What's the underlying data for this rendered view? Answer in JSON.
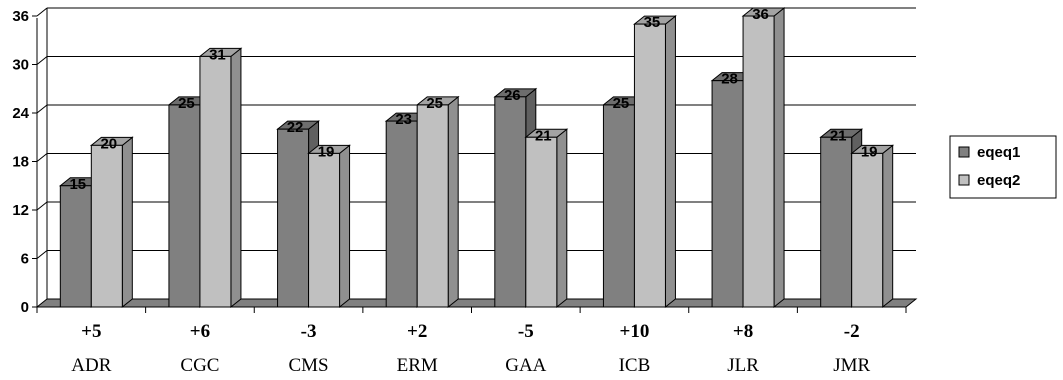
{
  "chart_data": {
    "type": "bar",
    "bar_style": "3d-clustered-column",
    "categories": [
      "ADR",
      "CGC",
      "CMS",
      "ERM",
      "GAA",
      "ICB",
      "JLR",
      "JMR"
    ],
    "difference_labels": [
      "+5",
      "+6",
      "-3",
      "+2",
      "-5",
      "+10",
      "+8",
      "-2"
    ],
    "series": [
      {
        "name": "eqeq1",
        "values": [
          15,
          25,
          22,
          23,
          26,
          25,
          28,
          21
        ],
        "color": "#808080"
      },
      {
        "name": "eqeq2",
        "values": [
          20,
          31,
          19,
          25,
          21,
          35,
          36,
          19
        ],
        "color": "#c0c0c0"
      }
    ],
    "yticks": [
      "0",
      "6",
      "12",
      "18",
      "24",
      "30",
      "36"
    ],
    "ylim": [
      0,
      36
    ],
    "grid": true,
    "legend_position": "right"
  }
}
